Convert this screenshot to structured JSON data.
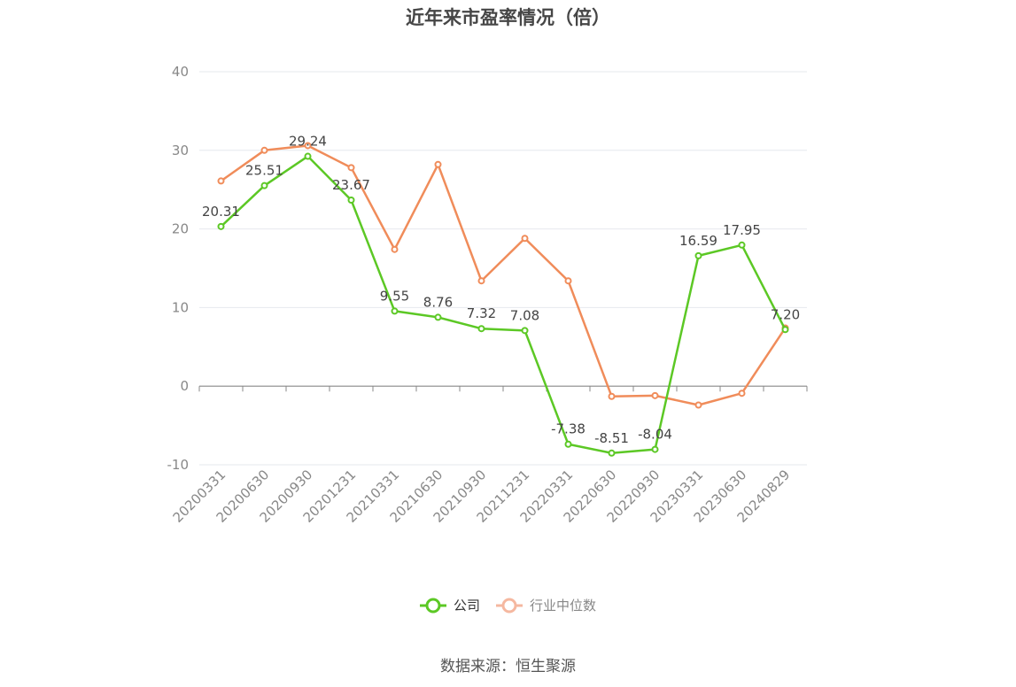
{
  "title": "近年来市盈率情况（倍）",
  "source": "数据来源：恒生聚源",
  "colors": {
    "company": "#5cc825",
    "industry": "#f08c5a",
    "industry_legend": "#f5b8a0",
    "axis": "#888888",
    "grid": "#e6e8ee"
  },
  "chart_data": {
    "type": "line",
    "title": "近年来市盈率情况（倍）",
    "xlabel": "",
    "ylabel": "",
    "ylim": [
      -10,
      40
    ],
    "yticks": [
      -10,
      0,
      10,
      20,
      30,
      40
    ],
    "grid": true,
    "legend_position": "bottom",
    "categories": [
      "20200331",
      "20200630",
      "20200930",
      "20201231",
      "20210331",
      "20210630",
      "20210930",
      "20211231",
      "20220331",
      "20220630",
      "20220930",
      "20230331",
      "20230630",
      "20240829"
    ],
    "series": [
      {
        "name": "公司",
        "values": [
          20.31,
          25.51,
          29.24,
          23.67,
          9.55,
          8.76,
          7.32,
          7.08,
          -7.38,
          -8.51,
          -8.04,
          16.59,
          17.95,
          7.2
        ],
        "labels": [
          "20.31",
          "25.51",
          "29.24",
          "23.67",
          "9.55",
          "8.76",
          "7.32",
          "7.08",
          "-7.38",
          "-8.51",
          "-8.04",
          "16.59",
          "17.95",
          "7.20"
        ]
      },
      {
        "name": "行业中位数",
        "values": [
          26.1,
          30.0,
          30.6,
          27.8,
          17.4,
          28.2,
          13.4,
          18.8,
          13.4,
          -1.3,
          -1.2,
          -2.4,
          -0.9,
          7.4
        ]
      }
    ]
  }
}
